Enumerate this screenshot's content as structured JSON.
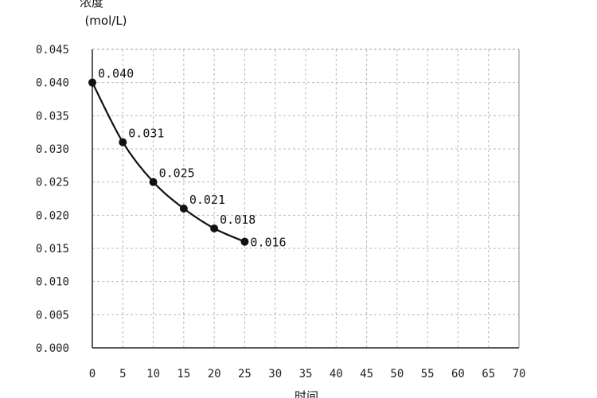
{
  "chart_data": {
    "type": "line",
    "title": "",
    "ylabel": "浓度",
    "ylabel_unit": "(mol/L)",
    "xlabel": "时间",
    "x": [
      0,
      5,
      10,
      15,
      20,
      25
    ],
    "y": [
      0.04,
      0.031,
      0.025,
      0.021,
      0.018,
      0.016
    ],
    "data_labels": [
      "0.040",
      "0.031",
      "0.025",
      "0.021",
      "0.018",
      "0.016"
    ],
    "xlim": [
      0,
      70
    ],
    "ylim": [
      0,
      0.045
    ],
    "x_ticks": [
      "0",
      "5",
      "10",
      "15",
      "20",
      "25",
      "30",
      "35",
      "40",
      "45",
      "50",
      "55",
      "60",
      "65",
      "70"
    ],
    "y_ticks": [
      "0.000",
      "0.005",
      "0.010",
      "0.015",
      "0.020",
      "0.025",
      "0.030",
      "0.035",
      "0.040",
      "0.045"
    ],
    "grid": true,
    "colors": {
      "line": "#111111",
      "grid": "#b8b8b8",
      "axis": "#222222"
    }
  }
}
